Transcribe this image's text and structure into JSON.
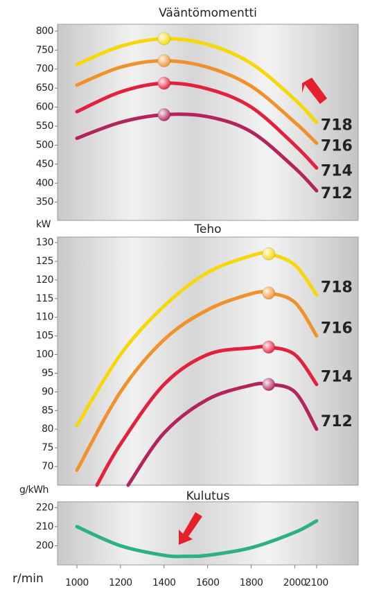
{
  "chart_data": [
    {
      "type": "line",
      "title": "Vääntömomentti",
      "xlim": [
        911,
        2291
      ],
      "ylim": [
        302,
        818
      ],
      "yticks": [
        350,
        400,
        450,
        500,
        550,
        600,
        650,
        700,
        750,
        800
      ],
      "series": [
        {
          "name": "718",
          "color": "#f6d70a",
          "x": [
            1000,
            1200,
            1400,
            1600,
            1800,
            2000,
            2100
          ],
          "values": [
            712,
            760,
            780,
            765,
            715,
            620,
            560
          ]
        },
        {
          "name": "716",
          "color": "#f0922c",
          "x": [
            1000,
            1200,
            1400,
            1600,
            1800,
            2000,
            2100
          ],
          "values": [
            658,
            705,
            722,
            705,
            655,
            560,
            505
          ]
        },
        {
          "name": "714",
          "color": "#e2213c",
          "x": [
            1000,
            1200,
            1400,
            1600,
            1800,
            2000,
            2100
          ],
          "values": [
            588,
            640,
            663,
            648,
            600,
            500,
            440
          ]
        },
        {
          "name": "712",
          "color": "#b3235c",
          "x": [
            1000,
            1200,
            1400,
            1600,
            1800,
            2000,
            2100
          ],
          "values": [
            518,
            560,
            580,
            575,
            535,
            440,
            380
          ]
        }
      ]
    },
    {
      "type": "line",
      "title": "Teho",
      "y_label": "kW",
      "xlim": [
        911,
        2291
      ],
      "ylim": [
        65,
        131.5
      ],
      "yticks": [
        70,
        75,
        80,
        85,
        90,
        95,
        100,
        105,
        110,
        115,
        120,
        125,
        130
      ],
      "series": [
        {
          "name": "718",
          "color": "#f6d70a",
          "x": [
            1000,
            1200,
            1400,
            1600,
            1800,
            1880,
            2000,
            2100
          ],
          "values": [
            81,
            100,
            113,
            122,
            126.5,
            127,
            124,
            116
          ]
        },
        {
          "name": "716",
          "color": "#f0922c",
          "x": [
            1000,
            1200,
            1400,
            1600,
            1800,
            1880,
            2000,
            2100
          ],
          "values": [
            69,
            90,
            104,
            112,
            116.3,
            116.5,
            114,
            105
          ]
        },
        {
          "name": "714",
          "color": "#e2213c",
          "x": [
            1092,
            1200,
            1400,
            1600,
            1800,
            1880,
            2000,
            2100
          ],
          "values": [
            65,
            76,
            92,
            100,
            101.8,
            102,
            100,
            92
          ]
        },
        {
          "name": "712",
          "color": "#b3235c",
          "x": [
            1235,
            1400,
            1600,
            1800,
            1880,
            2000,
            2100
          ],
          "values": [
            65,
            79,
            88,
            91.8,
            92,
            90,
            80
          ]
        }
      ]
    },
    {
      "type": "line",
      "title": "Kulutus",
      "y_label": "g/kWh",
      "x_label": "r/min",
      "xlim": [
        911,
        2291
      ],
      "ylim": [
        190,
        223
      ],
      "yticks": [
        200,
        210,
        220
      ],
      "xticks": [
        1000,
        1200,
        1400,
        1600,
        1800,
        2000,
        2100
      ],
      "series": [
        {
          "color": "#2bb08a",
          "x": [
            1000,
            1200,
            1400,
            1500,
            1600,
            1800,
            2000,
            2100
          ],
          "values": [
            210,
            200,
            195,
            194.5,
            195,
            199,
            207,
            213
          ]
        }
      ]
    }
  ]
}
